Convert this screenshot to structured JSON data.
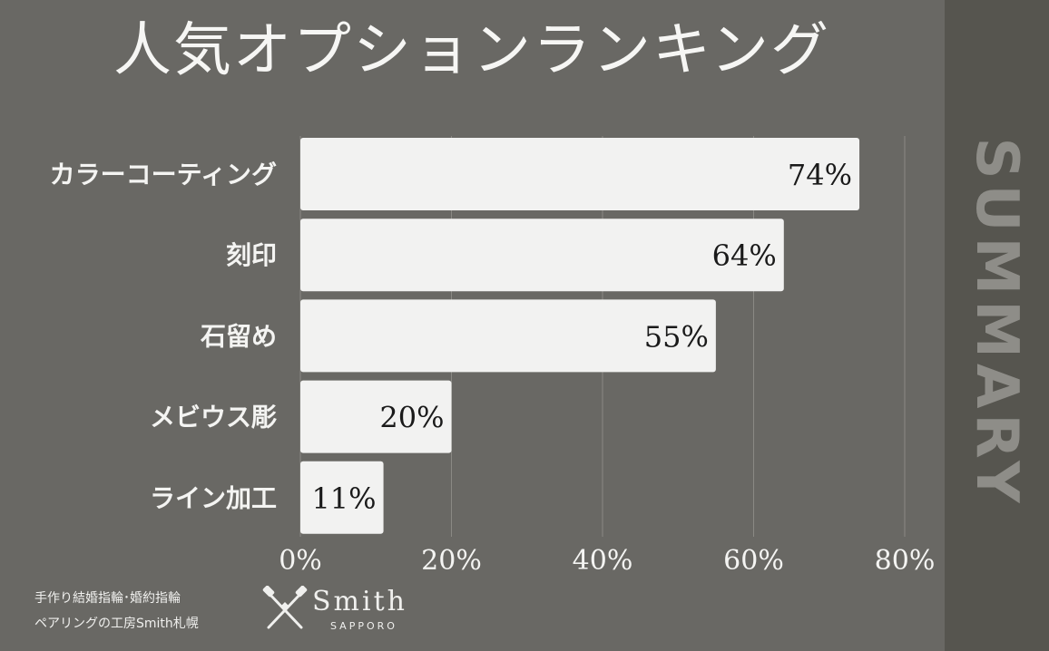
{
  "title": "人気オプションランキング",
  "side_label": "SUMMARY",
  "footer": {
    "line1": "手作り結婚指輪･婚約指輪",
    "line2": "ペアリングの工房Smith札幌",
    "logo_word": "Smith",
    "logo_sub": "SAPPORO"
  },
  "colors": {
    "background": "#696864",
    "side_band": "#56554f",
    "bar": "#f2f2f1",
    "text": "#f4f4f2",
    "value_text": "#1a1a1a"
  },
  "chart_data": {
    "type": "bar",
    "orientation": "horizontal",
    "categories": [
      "カラーコーティング",
      "刻印",
      "石留め",
      "メビウス彫",
      "ライン加工"
    ],
    "values": [
      74,
      64,
      55,
      20,
      11
    ],
    "value_labels": [
      "74%",
      "64%",
      "55%",
      "20%",
      "11%"
    ],
    "xlim": [
      0,
      80
    ],
    "xticks": [
      0,
      20,
      40,
      60,
      80
    ],
    "xtick_labels": [
      "0%",
      "20%",
      "40%",
      "60%",
      "80%"
    ],
    "grid": "vertical",
    "title": "人気オプションランキング"
  }
}
